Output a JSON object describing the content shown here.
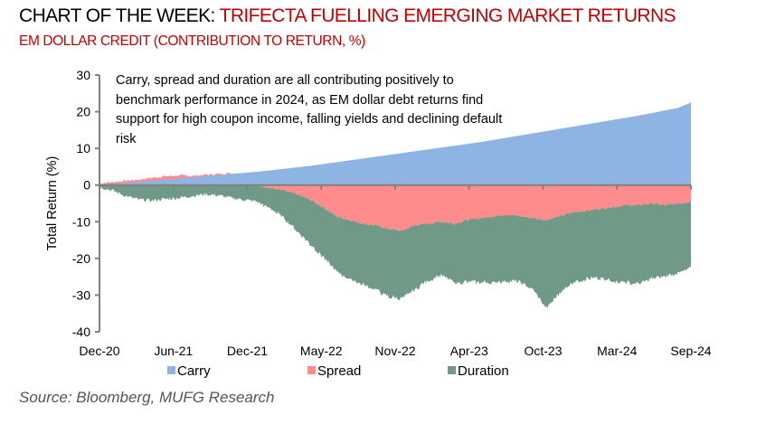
{
  "header": {
    "title_prefix": "CHART OF THE WEEK: ",
    "title_main": "TRIFECTA FUELLING EMERGING MARKET RETURNS",
    "subtitle": "EM DOLLAR CREDIT (CONTRIBUTION TO RETURN, %)"
  },
  "source": "Source: Bloomberg, MUFG Research",
  "chart_data": {
    "type": "area",
    "stacked": true,
    "title": "EM DOLLAR CREDIT (CONTRIBUTION TO RETURN, %)",
    "xlabel": "",
    "ylabel": "Total Return (%)",
    "ylim": [
      -40,
      30
    ],
    "yticks": [
      30,
      20,
      10,
      0,
      -10,
      -20,
      -30,
      -40
    ],
    "xtick_labels": [
      "Dec-20",
      "Jun-21",
      "Dec-21",
      "May-22",
      "Nov-22",
      "Apr-23",
      "Oct-23",
      "Mar-24",
      "Sep-24"
    ],
    "grid": false,
    "legend_position": "bottom",
    "annotation": "Carry, spread and duration are all contributing positively to benchmark performance in 2024, as EM dollar debt returns find support for high coupon income, falling yields  and declining default risk",
    "x": [
      "Dec-20",
      "Jan-21",
      "Feb-21",
      "Mar-21",
      "Apr-21",
      "May-21",
      "Jun-21",
      "Jul-21",
      "Aug-21",
      "Sep-21",
      "Oct-21",
      "Nov-21",
      "Dec-21",
      "Jan-22",
      "Feb-22",
      "Mar-22",
      "Apr-22",
      "May-22",
      "Jun-22",
      "Jul-22",
      "Aug-22",
      "Sep-22",
      "Oct-22",
      "Nov-22",
      "Dec-22",
      "Jan-23",
      "Feb-23",
      "Mar-23",
      "Apr-23",
      "May-23",
      "Jun-23",
      "Jul-23",
      "Aug-23",
      "Sep-23",
      "Oct-23",
      "Nov-23",
      "Dec-23",
      "Jan-24",
      "Feb-24",
      "Mar-24",
      "Apr-24",
      "May-24",
      "Jun-24",
      "Jul-24",
      "Aug-24",
      "Sep-24"
    ],
    "series": [
      {
        "name": "Carry",
        "color": "#8db4e2",
        "values": [
          0,
          0.3,
          0.6,
          0.9,
          1.2,
          1.5,
          1.8,
          2.1,
          2.4,
          2.7,
          3.0,
          3.3,
          3.6,
          4.0,
          4.4,
          4.8,
          5.2,
          5.7,
          6.2,
          6.7,
          7.2,
          7.7,
          8.2,
          8.7,
          9.2,
          9.7,
          10.2,
          10.7,
          11.2,
          11.7,
          12.3,
          12.9,
          13.5,
          14.1,
          14.7,
          15.3,
          15.9,
          16.5,
          17.1,
          17.7,
          18.3,
          18.9,
          19.6,
          20.3,
          21.0,
          22.5
        ]
      },
      {
        "name": "Spread",
        "color": "#ff8c8c",
        "values": [
          0.5,
          0.8,
          1.2,
          1.5,
          2.0,
          2.4,
          2.6,
          2.5,
          2.8,
          3.0,
          3.3,
          2.8,
          0,
          -0.8,
          -1.5,
          -2.5,
          -4.0,
          -6.0,
          -8.5,
          -9.5,
          -10.5,
          -11.0,
          -12.0,
          -12.5,
          -11.0,
          -10.5,
          -10.0,
          -10.5,
          -9.5,
          -9.0,
          -8.5,
          -8.0,
          -8.5,
          -9.0,
          -9.5,
          -8.5,
          -7.5,
          -7.0,
          -6.5,
          -6.0,
          -5.5,
          -5.5,
          -5.0,
          -5.5,
          -5.0,
          -4.5
        ]
      },
      {
        "name": "Duration",
        "color": "#709a87",
        "values": [
          -0.5,
          -1.5,
          -3.0,
          -4.0,
          -4.2,
          -3.8,
          -3.5,
          -3.0,
          -2.5,
          -2.8,
          -3.5,
          -4.0,
          -4.5,
          -5.5,
          -7.5,
          -10.0,
          -12.0,
          -13.5,
          -15.0,
          -16.0,
          -16.5,
          -17.5,
          -18.5,
          -18.5,
          -17.5,
          -15.5,
          -14.5,
          -16.0,
          -17.0,
          -17.5,
          -18.0,
          -18.0,
          -18.0,
          -19.5,
          -24.0,
          -21.0,
          -19.0,
          -18.5,
          -19.0,
          -20.0,
          -21.0,
          -21.5,
          -20.5,
          -19.5,
          -19.0,
          -18.0
        ]
      }
    ]
  }
}
